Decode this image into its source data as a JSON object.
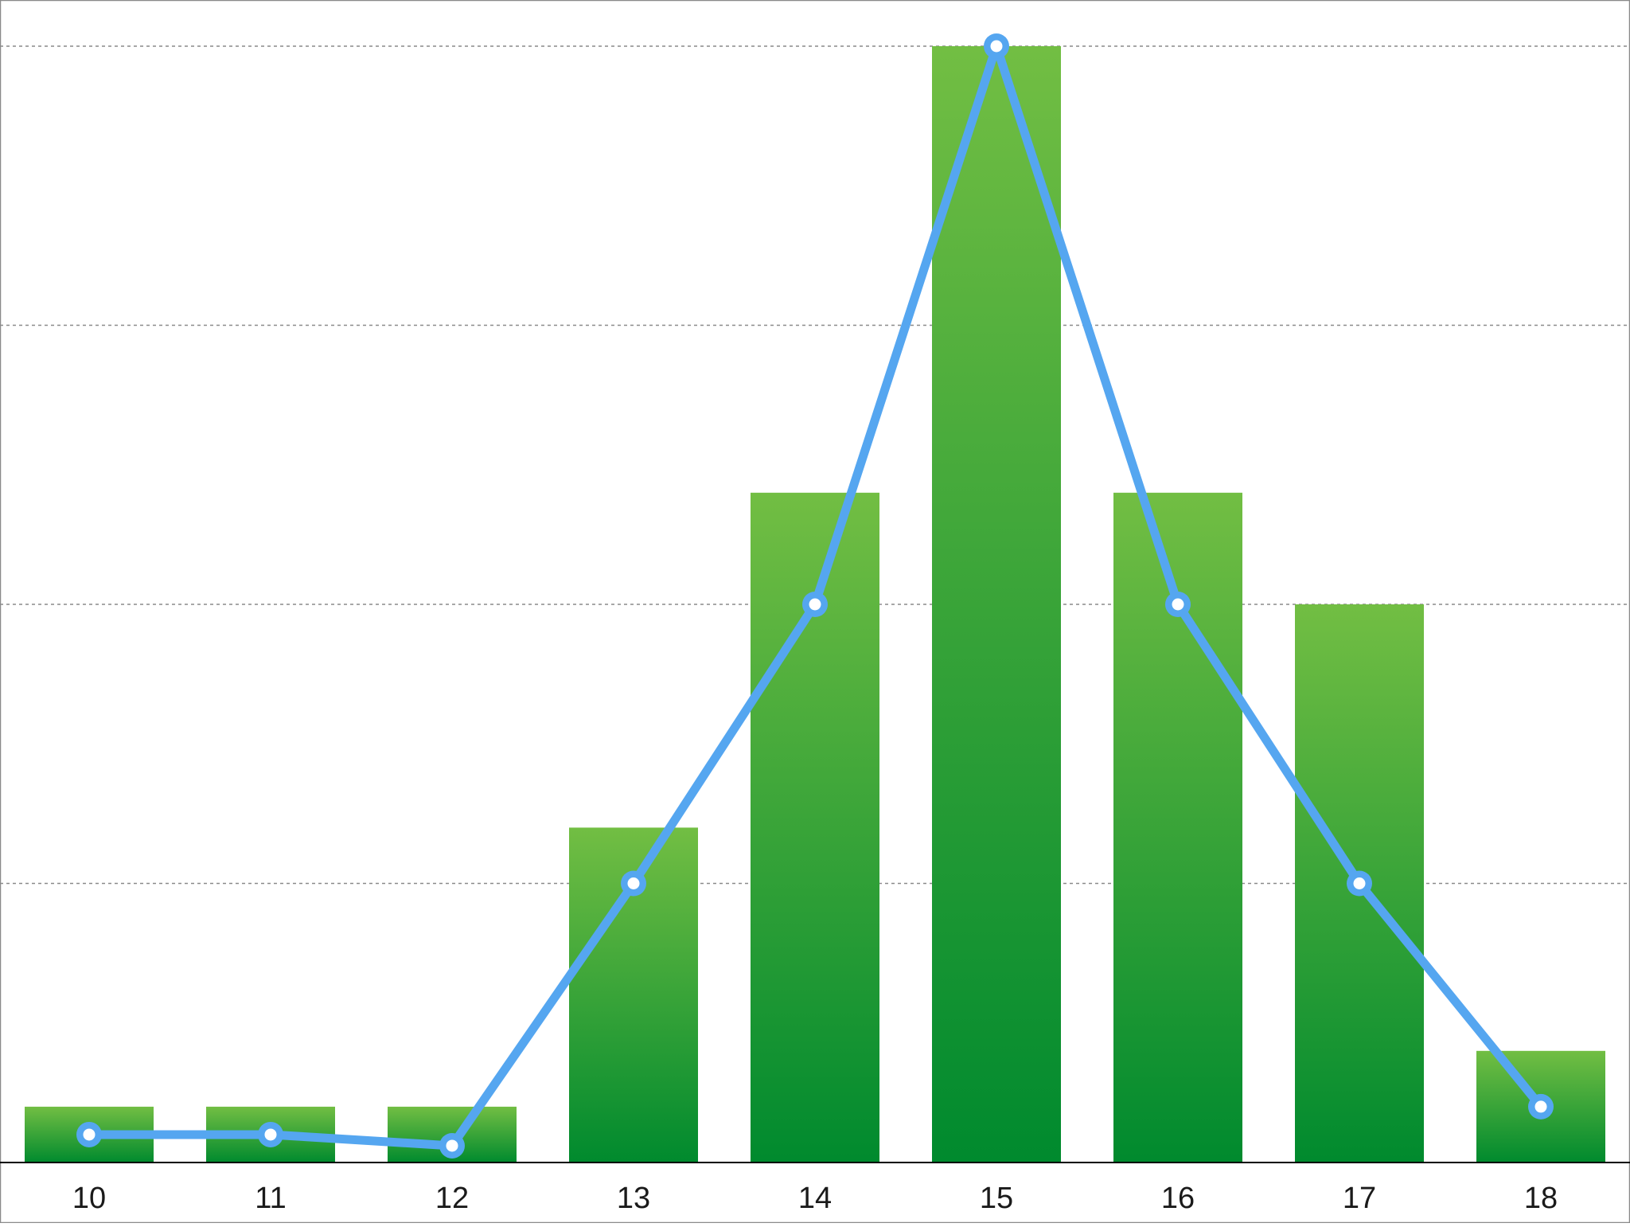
{
  "chart_data": {
    "type": "bar",
    "categories": [
      "10",
      "11",
      "12",
      "13",
      "14",
      "15",
      "16",
      "17",
      "18"
    ],
    "ylim": [
      0,
      100
    ],
    "grid": true,
    "series": [
      {
        "type": "bar",
        "values": [
          5,
          5,
          5,
          30,
          60,
          100,
          60,
          50,
          10
        ]
      },
      {
        "type": "line",
        "values": [
          2.5,
          2.5,
          1.5,
          25,
          50,
          100,
          50,
          25,
          5
        ]
      }
    ],
    "xlabel": "",
    "ylabel": ""
  },
  "colors": {
    "bar_top": "#72be43",
    "bar_bottom": "#008a2e",
    "line": "#55a6f0",
    "marker_fill": "#ffffff",
    "grid": "#8a8a8a",
    "axis": "#000000",
    "frame": "#8a8a8a",
    "tick_text": "#1a1a1a"
  }
}
